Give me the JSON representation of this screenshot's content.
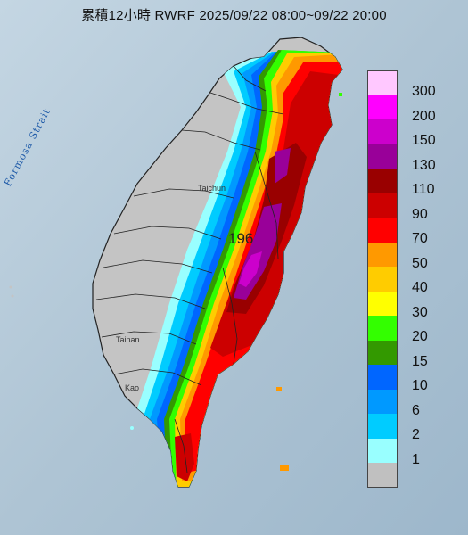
{
  "title": "累積12小時 RWRF 2025/09/22 08:00~09/22 20:00",
  "strait_label": "Formosa Strait",
  "cities": [
    "Taichun",
    "Tainan",
    "Kao"
  ],
  "max_value": "196",
  "legend": [
    {
      "label": "300",
      "color": "#ffc8ff"
    },
    {
      "label": "200",
      "color": "#ff00ff"
    },
    {
      "label": "150",
      "color": "#cc00cc"
    },
    {
      "label": "130",
      "color": "#990099"
    },
    {
      "label": "110",
      "color": "#990000"
    },
    {
      "label": "90",
      "color": "#cc0000"
    },
    {
      "label": "70",
      "color": "#ff0000"
    },
    {
      "label": "50",
      "color": "#ff9900"
    },
    {
      "label": "40",
      "color": "#ffcc00"
    },
    {
      "label": "30",
      "color": "#ffff00"
    },
    {
      "label": "20",
      "color": "#33ff00"
    },
    {
      "label": "15",
      "color": "#339900"
    },
    {
      "label": "10",
      "color": "#0066ff"
    },
    {
      "label": "6",
      "color": "#0099ff"
    },
    {
      "label": "2",
      "color": "#00ccff"
    },
    {
      "label": "1",
      "color": "#99ffff"
    },
    {
      "label": "",
      "color": "#c0c0c0"
    }
  ]
}
